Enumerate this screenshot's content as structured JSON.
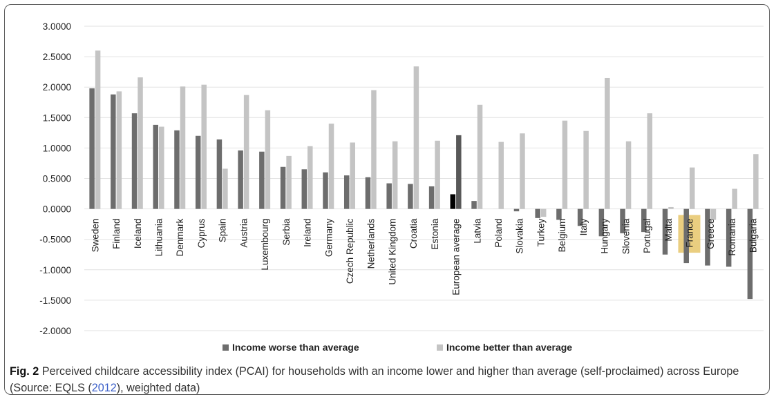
{
  "chart_data": {
    "type": "bar",
    "categories": [
      "Sweden",
      "Finland",
      "Iceland",
      "Lithuania",
      "Denmark",
      "Cyprus",
      "Spain",
      "Austria",
      "Luxembourg",
      "Serbia",
      "Ireland",
      "Germany",
      "Czech Republic",
      "Netherlands",
      "United Kingdom",
      "Croatia",
      "Estonia",
      "European average",
      "Latvia",
      "Poland",
      "Slovakia",
      "Turkey",
      "Belgium",
      "Italy",
      "Hungary",
      "Slovenia",
      "Portugal",
      "Malta",
      "France",
      "Greece",
      "Romania",
      "Bulgaria"
    ],
    "series": [
      {
        "name": "Income worse than average",
        "color": "#6d6d6d",
        "values": [
          1.98,
          1.88,
          1.57,
          1.38,
          1.29,
          1.2,
          1.14,
          0.96,
          0.94,
          0.69,
          0.65,
          0.6,
          0.55,
          0.52,
          0.42,
          0.41,
          0.37,
          0.24,
          0.13,
          0.0,
          -0.04,
          -0.15,
          -0.18,
          -0.28,
          -0.45,
          -0.4,
          -0.38,
          -0.75,
          -0.89,
          -0.93,
          -0.95,
          -1.48
        ]
      },
      {
        "name": "Income better than average",
        "color": "#c4c4c4",
        "values": [
          2.6,
          1.93,
          2.16,
          1.35,
          2.01,
          2.04,
          0.66,
          1.87,
          1.62,
          0.87,
          1.03,
          1.4,
          1.09,
          1.95,
          1.11,
          2.34,
          1.12,
          1.21,
          1.71,
          1.1,
          1.24,
          -0.13,
          1.45,
          1.28,
          2.15,
          1.11,
          1.57,
          0.03,
          0.68,
          -0.18,
          0.33,
          0.9
        ]
      }
    ],
    "highlight_colors": {
      "european_average_worse": "#000000",
      "european_average_better": "#585858",
      "france_box": "#e6c56a"
    },
    "y_ticks": [
      "3.0000",
      "2.5000",
      "2.0000",
      "1.5000",
      "1.0000",
      "0.5000",
      "0.0000",
      "-0.5000",
      "-1.0000",
      "-1.5000",
      "-2.0000"
    ],
    "ylim": [
      -2.0,
      3.0
    ],
    "grid": true,
    "legend_position": "bottom-center",
    "highlighted_category": "France",
    "xlabel": "",
    "ylabel": ""
  },
  "caption": {
    "label": "Fig. 2",
    "text_before": "Perceived childcare accessibility index (PCAI) for households with an income lower and higher than average (self-proclaimed) across Europe (Source: EQLS (",
    "citation": "2012",
    "text_after": "), weighted data)"
  }
}
